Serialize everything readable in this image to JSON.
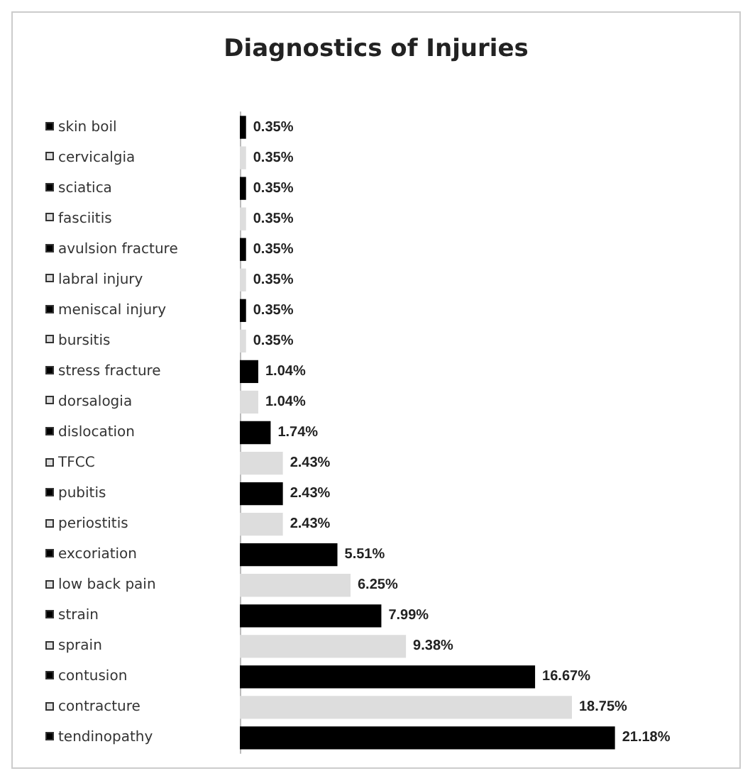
{
  "chart_data": {
    "type": "bar",
    "orientation": "horizontal",
    "title": "Diagnostics of Injuries",
    "categories": [
      "skin boil",
      "cervicalgia",
      "sciatica",
      "fasciitis",
      "avulsion fracture",
      "labral injury",
      "meniscal injury",
      "bursitis",
      "stress fracture",
      "dorsalogia",
      "dislocation",
      "TFCC",
      "pubitis",
      "periostitis",
      "excoriation",
      "low back pain",
      "strain",
      "sprain",
      "contusion",
      "contracture",
      "tendinopathy"
    ],
    "values": [
      0.35,
      0.35,
      0.35,
      0.35,
      0.35,
      0.35,
      0.35,
      0.35,
      1.04,
      1.04,
      1.74,
      2.43,
      2.43,
      2.43,
      5.51,
      6.25,
      7.99,
      9.38,
      16.67,
      18.75,
      21.18
    ],
    "colors": [
      "#000000",
      "#dddddd",
      "#000000",
      "#dddddd",
      "#000000",
      "#dddddd",
      "#000000",
      "#dddddd",
      "#000000",
      "#dddddd",
      "#000000",
      "#dddddd",
      "#000000",
      "#dddddd",
      "#000000",
      "#dddddd",
      "#000000",
      "#dddddd",
      "#000000",
      "#dddddd",
      "#000000"
    ],
    "value_labels": [
      "0.35%",
      "0.35%",
      "0.35%",
      "0.35%",
      "0.35%",
      "0.35%",
      "0.35%",
      "0.35%",
      "1.04%",
      "1.04%",
      "1.74%",
      "2.43%",
      "2.43%",
      "2.43%",
      "5.51%",
      "6.25%",
      "7.99%",
      "9.38%",
      "16.67%",
      "18.75%",
      "21.18%"
    ]
  }
}
